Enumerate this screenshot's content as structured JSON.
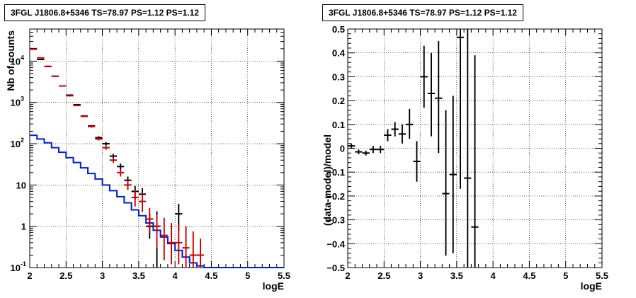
{
  "chart_data": [
    {
      "type": "line",
      "title": "3FGL J1806.8+5346 TS=78.97 PS=1.12 PS=1.12",
      "xlabel": "logE",
      "ylabel": "Nb of counts",
      "xlim": [
        2,
        5.5
      ],
      "ylim": [
        0.1,
        60000
      ],
      "yscale": "log",
      "grid": true,
      "xticks": [
        "2",
        "2.5",
        "3",
        "3.5",
        "4",
        "4.5",
        "5",
        "5.5"
      ],
      "yticks": [
        "10^-1",
        "1",
        "10",
        "10^2",
        "10^3",
        "10^4"
      ],
      "series": [
        {
          "color": "#000000",
          "style": "errorbar",
          "points": [
            {
              "x": 2.05,
              "y": 20000,
              "lo": 19800,
              "hi": 20200
            },
            {
              "x": 2.15,
              "y": 11000,
              "lo": 10900,
              "hi": 11100
            },
            {
              "x": 2.25,
              "y": 7400,
              "lo": 7300,
              "hi": 7500
            },
            {
              "x": 2.35,
              "y": 4300,
              "lo": 4230,
              "hi": 4370
            },
            {
              "x": 2.45,
              "y": 2500,
              "lo": 2450,
              "hi": 2550
            },
            {
              "x": 2.55,
              "y": 1500,
              "lo": 1460,
              "hi": 1540
            },
            {
              "x": 2.65,
              "y": 880,
              "lo": 850,
              "hi": 910
            },
            {
              "x": 2.75,
              "y": 470,
              "lo": 450,
              "hi": 490
            },
            {
              "x": 2.85,
              "y": 270,
              "lo": 255,
              "hi": 285
            },
            {
              "x": 2.95,
              "y": 140,
              "lo": 128,
              "hi": 152
            },
            {
              "x": 3.05,
              "y": 100,
              "lo": 90,
              "hi": 110
            },
            {
              "x": 3.15,
              "y": 50,
              "lo": 43,
              "hi": 57
            },
            {
              "x": 3.25,
              "y": 28,
              "lo": 23,
              "hi": 33
            },
            {
              "x": 3.35,
              "y": 13,
              "lo": 10,
              "hi": 16
            },
            {
              "x": 3.45,
              "y": 7,
              "lo": 4.5,
              "hi": 9.5
            },
            {
              "x": 3.55,
              "y": 6,
              "lo": 3.6,
              "hi": 8.4
            },
            {
              "x": 3.65,
              "y": 1,
              "lo": 0.5,
              "hi": 2
            },
            {
              "x": 3.75,
              "y": 1,
              "lo": 0.1,
              "hi": 2.3
            },
            {
              "x": 4.05,
              "y": 2,
              "lo": 0.8,
              "hi": 3.5
            }
          ]
        },
        {
          "color": "#d40000",
          "style": "errorbar",
          "points": [
            {
              "x": 2.05,
              "y": 19500,
              "lo": 19300,
              "hi": 19700
            },
            {
              "x": 2.15,
              "y": 12000,
              "lo": 11850,
              "hi": 12150
            },
            {
              "x": 2.25,
              "y": 7500,
              "lo": 7400,
              "hi": 7600
            },
            {
              "x": 2.35,
              "y": 4300,
              "lo": 4230,
              "hi": 4370
            },
            {
              "x": 2.45,
              "y": 2500,
              "lo": 2450,
              "hi": 2550
            },
            {
              "x": 2.55,
              "y": 1450,
              "lo": 1410,
              "hi": 1490
            },
            {
              "x": 2.65,
              "y": 840,
              "lo": 810,
              "hi": 870
            },
            {
              "x": 2.75,
              "y": 460,
              "lo": 440,
              "hi": 480
            },
            {
              "x": 2.85,
              "y": 260,
              "lo": 245,
              "hi": 275
            },
            {
              "x": 2.95,
              "y": 130,
              "lo": 119,
              "hi": 141
            },
            {
              "x": 3.05,
              "y": 80,
              "lo": 71,
              "hi": 89
            },
            {
              "x": 3.15,
              "y": 40,
              "lo": 34,
              "hi": 46
            },
            {
              "x": 3.25,
              "y": 20,
              "lo": 16,
              "hi": 24
            },
            {
              "x": 3.35,
              "y": 10,
              "lo": 7.5,
              "hi": 13
            },
            {
              "x": 3.45,
              "y": 5,
              "lo": 3,
              "hi": 7.5
            },
            {
              "x": 3.55,
              "y": 4,
              "lo": 2.2,
              "hi": 6.5
            },
            {
              "x": 3.65,
              "y": 1.5,
              "lo": 0.7,
              "hi": 2.8
            },
            {
              "x": 3.75,
              "y": 1,
              "lo": 0.3,
              "hi": 1.9
            },
            {
              "x": 3.85,
              "y": 0.6,
              "lo": 0.15,
              "hi": 1.6
            },
            {
              "x": 3.95,
              "y": 0.4,
              "lo": 0.12,
              "hi": 1.2
            },
            {
              "x": 4.05,
              "y": 0.4,
              "lo": 0.12,
              "hi": 1.1
            },
            {
              "x": 4.15,
              "y": 0.3,
              "lo": 0.1,
              "hi": 1.0
            },
            {
              "x": 4.25,
              "y": 0.2,
              "lo": 0.1,
              "hi": 0.75
            },
            {
              "x": 4.35,
              "y": 0.2,
              "lo": 0.1,
              "hi": 0.5
            }
          ]
        },
        {
          "color": "#0022cc",
          "style": "step",
          "edges": [
            2.0,
            2.1,
            2.2,
            2.3,
            2.4,
            2.5,
            2.6,
            2.7,
            2.8,
            2.9,
            3.0,
            3.1,
            3.2,
            3.3,
            3.4,
            3.5,
            3.6,
            3.7,
            3.8,
            3.9,
            4.0,
            4.1,
            4.2,
            4.3,
            4.4,
            5.5
          ],
          "values": [
            160,
            130,
            105,
            80,
            62,
            46,
            35,
            26,
            19,
            14,
            10,
            7.3,
            5.2,
            3.7,
            2.5,
            1.8,
            1.2,
            0.8,
            0.55,
            0.38,
            0.26,
            0.18,
            0.13,
            0.11,
            0.1
          ]
        }
      ]
    },
    {
      "type": "scatter",
      "title": "3FGL J1806.8+5346 TS=78.97 PS=1.12 PS=1.12",
      "xlabel": "logE",
      "ylabel": "(data-model)/model",
      "xlim": [
        2,
        5.5
      ],
      "ylim": [
        -0.5,
        0.5
      ],
      "grid": true,
      "xticks": [
        "2",
        "2.5",
        "3",
        "3.5",
        "4",
        "4.5",
        "5",
        "5.5"
      ],
      "yticks": [
        "−0.5",
        "−0.4",
        "−0.3",
        "−0.2",
        "−0.1",
        "0",
        "0.1",
        "0.2",
        "0.3",
        "0.4",
        "0.5"
      ],
      "series": [
        {
          "color": "#000000",
          "style": "errorbar",
          "points": [
            {
              "x": 2.05,
              "y": 0.01,
              "lo": 0.0,
              "hi": 0.02
            },
            {
              "x": 2.15,
              "y": -0.015,
              "lo": -0.025,
              "hi": -0.005
            },
            {
              "x": 2.25,
              "y": -0.02,
              "lo": -0.03,
              "hi": -0.01
            },
            {
              "x": 2.35,
              "y": -0.005,
              "lo": -0.02,
              "hi": 0.01
            },
            {
              "x": 2.45,
              "y": -0.005,
              "lo": -0.02,
              "hi": 0.01
            },
            {
              "x": 2.55,
              "y": 0.055,
              "lo": 0.03,
              "hi": 0.08
            },
            {
              "x": 2.65,
              "y": 0.08,
              "lo": 0.05,
              "hi": 0.11
            },
            {
              "x": 2.75,
              "y": 0.06,
              "lo": 0.02,
              "hi": 0.1
            },
            {
              "x": 2.85,
              "y": 0.1,
              "lo": 0.04,
              "hi": 0.165
            },
            {
              "x": 2.95,
              "y": -0.055,
              "lo": -0.14,
              "hi": 0.03
            },
            {
              "x": 3.05,
              "y": 0.3,
              "lo": 0.17,
              "hi": 0.43
            },
            {
              "x": 3.15,
              "y": 0.23,
              "lo": 0.05,
              "hi": 0.4
            },
            {
              "x": 3.25,
              "y": 0.21,
              "lo": -0.02,
              "hi": 0.45
            },
            {
              "x": 3.35,
              "y": -0.19,
              "lo": -0.45,
              "hi": 0.16
            },
            {
              "x": 3.45,
              "y": -0.11,
              "lo": -0.44,
              "hi": 0.22
            },
            {
              "x": 3.55,
              "y": 0.465,
              "lo": -0.17,
              "hi": 0.5
            },
            {
              "x": 3.65,
              "y": -0.125,
              "lo": -0.5,
              "hi": 0.5
            },
            {
              "x": 3.75,
              "y": -0.33,
              "lo": -0.5,
              "hi": 0.39
            }
          ]
        }
      ]
    }
  ]
}
